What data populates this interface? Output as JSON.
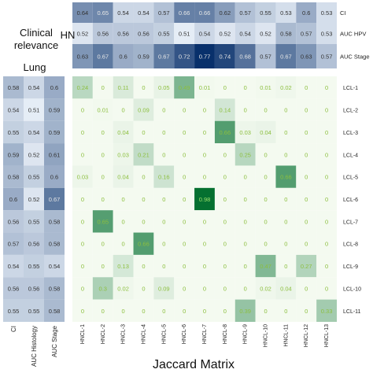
{
  "labels": {
    "clinical_relevance_1": "Clinical",
    "clinical_relevance_2": "relevance",
    "hn": "HN",
    "lung": "Lung",
    "jaccard_title": "Jaccard Matrix"
  },
  "colors": {
    "jaccard_low": "#f4faf0",
    "jaccard_high": "#006d2c",
    "jaccard_text": "#8cbf3f",
    "auc_low": "#eef4fb",
    "auc_high": "#08306b",
    "auc_text_dark": "#333333",
    "auc_text_light": "#e6e6e6"
  },
  "chart_data": [
    {
      "type": "heatmap",
      "name": "hn-clinical-relevance",
      "rows": [
        "CI",
        "AUC HPV",
        "AUC Stage"
      ],
      "columns": [
        "HNCL-1",
        "HNCL-2",
        "HNCL-3",
        "HNCL-4",
        "HNCL-5",
        "HNCL-6",
        "HNCL-7",
        "HNCL-8",
        "HNCL-9",
        "HNCL-10",
        "HNCL-11",
        "HNCL-12",
        "HNCL-13"
      ],
      "values": [
        [
          0.64,
          0.65,
          0.54,
          0.54,
          0.57,
          0.66,
          0.66,
          0.62,
          0.57,
          0.55,
          0.53,
          0.6,
          0.53
        ],
        [
          0.52,
          0.56,
          0.56,
          0.56,
          0.55,
          0.51,
          0.54,
          0.52,
          0.54,
          0.52,
          0.58,
          0.57,
          0.53
        ],
        [
          0.63,
          0.67,
          0.6,
          0.59,
          0.67,
          0.72,
          0.77,
          0.74,
          0.68,
          0.57,
          0.67,
          0.63,
          0.57
        ]
      ]
    },
    {
      "type": "heatmap",
      "name": "lung-clinical-relevance",
      "rows": [
        "LCL-1",
        "LCL-2",
        "LCL-3",
        "LCL-4",
        "LCL-5",
        "LCL-6",
        "LCL-7",
        "LCL-8",
        "LCL-9",
        "LCL-10",
        "LCL-11"
      ],
      "columns": [
        "CI",
        "AUC Histology",
        "AUC Stage"
      ],
      "values": [
        [
          0.58,
          0.54,
          0.6
        ],
        [
          0.54,
          0.51,
          0.59
        ],
        [
          0.55,
          0.54,
          0.59
        ],
        [
          0.59,
          0.52,
          0.61
        ],
        [
          0.58,
          0.55,
          0.6
        ],
        [
          0.6,
          0.52,
          0.67
        ],
        [
          0.56,
          0.55,
          0.58
        ],
        [
          0.57,
          0.56,
          0.58
        ],
        [
          0.54,
          0.55,
          0.54
        ],
        [
          0.56,
          0.56,
          0.58
        ],
        [
          0.55,
          0.55,
          0.58
        ]
      ]
    },
    {
      "type": "heatmap",
      "name": "jaccard-matrix",
      "title": "Jaccard Matrix",
      "rows": [
        "LCL-1",
        "LCL-2",
        "LCL-3",
        "LCL-4",
        "LCL-5",
        "LCL-6",
        "LCL-7",
        "LCL-8",
        "LCL-9",
        "LCL-10",
        "LCL-11"
      ],
      "columns": [
        "HNCL-1",
        "HNCL-2",
        "HNCL-3",
        "HNCL-4",
        "HNCL-5",
        "HNCL-6",
        "HNCL-7",
        "HNCL-8",
        "HNCL-9",
        "HNCL-10",
        "HNCL-11",
        "HNCL-12",
        "HNCL-13"
      ],
      "values": [
        [
          0.24,
          0,
          0.11,
          0,
          0.05,
          0.49,
          0.01,
          0,
          0,
          0.01,
          0.02,
          0,
          0
        ],
        [
          0,
          0.01,
          0,
          0.09,
          0,
          0,
          0,
          0.14,
          0,
          0,
          0,
          0,
          0
        ],
        [
          0,
          0,
          0.04,
          0,
          0,
          0,
          0,
          0.66,
          0.03,
          0.04,
          0,
          0,
          0
        ],
        [
          0,
          0,
          0.03,
          0.21,
          0,
          0,
          0,
          0,
          0.25,
          0,
          0,
          0,
          0
        ],
        [
          0.03,
          0,
          0.04,
          0,
          0.16,
          0,
          0,
          0,
          0,
          0,
          0.66,
          0,
          0
        ],
        [
          0,
          0,
          0,
          0,
          0,
          0,
          0.98,
          0,
          0,
          0,
          0,
          0,
          0
        ],
        [
          0,
          0.65,
          0,
          0,
          0,
          0,
          0,
          0,
          0,
          0,
          0,
          0,
          0
        ],
        [
          0,
          0,
          0,
          0.66,
          0,
          0,
          0,
          0,
          0,
          0,
          0,
          0,
          0
        ],
        [
          0,
          0,
          0.13,
          0,
          0,
          0,
          0,
          0,
          0,
          0.47,
          0,
          0.27,
          0
        ],
        [
          0,
          0.3,
          0.02,
          0,
          0.09,
          0,
          0,
          0,
          0,
          0.02,
          0.04,
          0,
          0
        ],
        [
          0,
          0,
          0,
          0,
          0,
          0,
          0,
          0,
          0.39,
          0,
          0,
          0,
          0.33
        ]
      ]
    }
  ]
}
